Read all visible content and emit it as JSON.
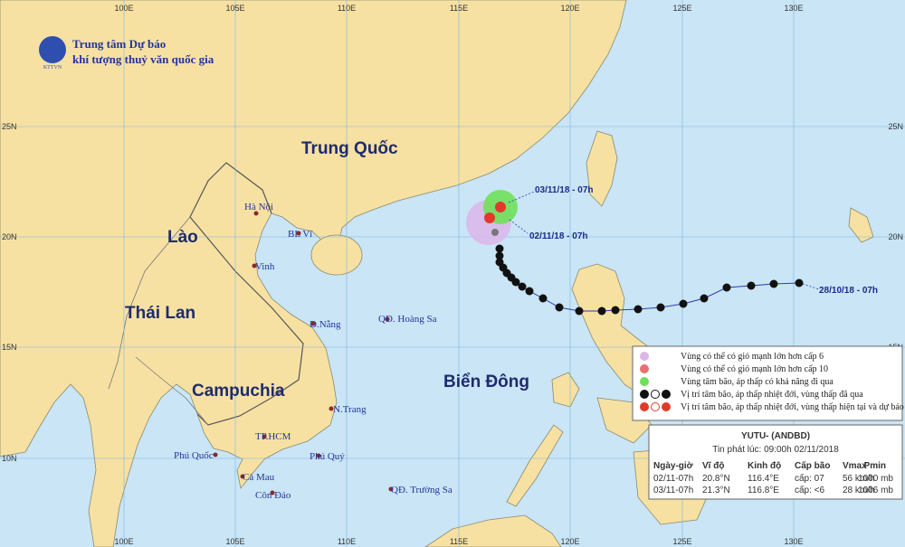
{
  "header": {
    "org_line1": "Trung tâm Dự báo",
    "org_line2": "khí tượng thuỷ văn quốc gia",
    "logo": "KTTVN"
  },
  "grid": {
    "lon_labels": [
      "100E",
      "105E",
      "110E",
      "115E",
      "120E",
      "125E",
      "130E"
    ],
    "lat_labels": [
      "25N",
      "20N",
      "15N",
      "10N"
    ]
  },
  "regions": [
    "Trung Quốc",
    "Lào",
    "Thái Lan",
    "Campuchia",
    "Biển Đông"
  ],
  "places": [
    "Hà Nội",
    "BL Vĩ",
    "Vinh",
    "Đ.Nẵng",
    "QĐ. Hoàng Sa",
    "N.Trang",
    "TP.HCM",
    "Phú Quốc",
    "Phú Quý",
    "Cà Mau",
    "Côn Đảo",
    "QĐ. Trường Sa"
  ],
  "track_labels": [
    "03/11/18 - 07h",
    "02/11/18 - 07h",
    "28/10/18 - 07h"
  ],
  "legend": {
    "items": [
      "Vùng có thể có gió mạnh lớn hơn cấp 6",
      "Vùng có thể có gió mạnh lớn hơn cấp 10",
      "Vùng tâm bão, áp thấp có khả năng đi qua",
      "Vị trí tâm bão, áp thấp nhiệt đới, vùng thấp đã qua",
      "Vị trí tâm bão, áp thấp nhiệt đới, vùng thấp hiện tại và dự báo"
    ]
  },
  "info": {
    "title": "YUTU- (ANDBD)",
    "issued": "Tin phát lúc: 09:00h 02/11/2018",
    "table": {
      "columns": [
        "Ngày-giờ",
        "Vĩ độ",
        "Kinh độ",
        "Cấp bão",
        "Vmax",
        "Pmin"
      ],
      "rows": [
        [
          "02/11-07h",
          "20.8°N",
          "116.4°E",
          "cấp: 07",
          "56 km/h",
          "1000 mb"
        ],
        [
          "03/11-07h",
          "21.3°N",
          "116.8°E",
          "cấp: <6",
          "28 km/h",
          "1006 mb"
        ]
      ]
    }
  }
}
